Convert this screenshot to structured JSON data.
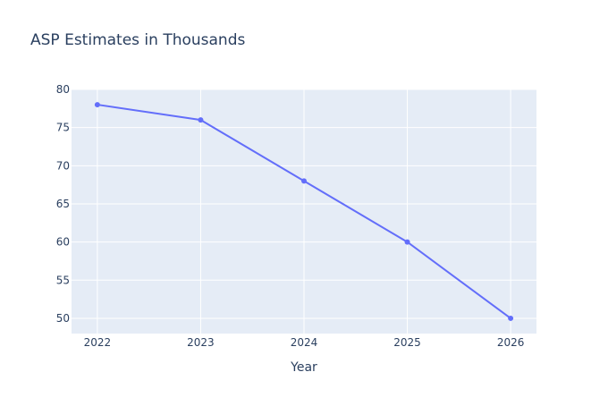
{
  "chart_data": {
    "type": "line",
    "title": "ASP Estimates in Thousands",
    "xlabel": "Year",
    "ylabel": "",
    "x": [
      2022,
      2023,
      2024,
      2025,
      2026
    ],
    "x_ticks": [
      "2022",
      "2023",
      "2024",
      "2025",
      "2026"
    ],
    "y_ticks": [
      50,
      55,
      60,
      65,
      70,
      75,
      80
    ],
    "ylim": [
      48,
      80
    ],
    "xlim": [
      2021.75,
      2026.25
    ],
    "grid": true,
    "legend": "none",
    "series": [
      {
        "values": [
          78,
          76,
          68,
          60,
          50
        ],
        "color": "#636efa",
        "mode": "lines+markers"
      }
    ],
    "colors": {
      "plot_background": "#e5ecf6",
      "grid": "#ffffff",
      "text": "#2a3f5f"
    }
  }
}
